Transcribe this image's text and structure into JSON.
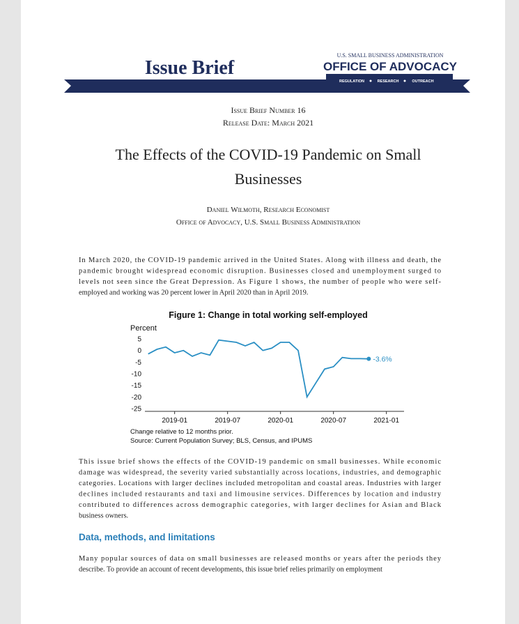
{
  "header": {
    "title": "Issue Brief",
    "agency": "U.S. SMALL BUSINESS ADMINISTRATION",
    "office_prefix": "OFFICE OF",
    "office_name": "ADVOCACY",
    "tagline": [
      "REGULATION",
      "RESEARCH",
      "OUTREACH"
    ]
  },
  "meta": {
    "number": "Issue Brief Number 16",
    "release": "Release Date: March 2021"
  },
  "title": [
    "The Effects of the COVID-19 Pandemic on Small",
    "Businesses"
  ],
  "authors": [
    "Daniel Wilmoth, Research Economist",
    "Office of Advocacy, U.S. Small Business Administration"
  ],
  "intro": [
    "In March 2020, the COVID-19 pandemic arrived in the United States. Along with illness and death, the",
    "pandemic brought widespread economic disruption. Businesses closed and unemployment surged to",
    "levels not seen since the Great Depression. As Figure 1 shows, the number of people who were self-",
    "employed and working was 20 percent lower in April 2020 than in April 2019."
  ],
  "chart_data": {
    "type": "line",
    "title": "Figure 1: Change in total working self-employed",
    "ylabel": "Percent",
    "x": [
      "2018-10",
      "2018-11",
      "2018-12",
      "2019-01",
      "2019-02",
      "2019-03",
      "2019-04",
      "2019-05",
      "2019-06",
      "2019-07",
      "2019-08",
      "2019-09",
      "2019-10",
      "2019-11",
      "2019-12",
      "2020-01",
      "2020-02",
      "2020-03",
      "2020-04",
      "2020-05",
      "2020-06",
      "2020-07",
      "2020-08",
      "2020-09",
      "2020-10",
      "2020-11"
    ],
    "series": [
      {
        "color": "#2a8fc4",
        "values": [
          -1.5,
          0.5,
          1.5,
          -1,
          0,
          -2.5,
          -1,
          -2,
          4.5,
          4,
          3.5,
          2,
          3.5,
          0,
          1,
          3.5,
          3.5,
          0,
          -20,
          -14,
          -8,
          -7,
          -3,
          -3.5,
          -3.5,
          -3.6
        ],
        "value_labels": [
          null,
          null,
          null,
          null,
          null,
          null,
          null,
          null,
          null,
          null,
          null,
          null,
          null,
          null,
          null,
          null,
          null,
          null,
          null,
          null,
          null,
          null,
          null,
          null,
          null,
          "-3.6%"
        ]
      }
    ],
    "xlim": [
      "2018-09",
      "2021-03"
    ],
    "xticks": [
      "2019-01",
      "2019-07",
      "2020-01",
      "2020-07",
      "2021-01"
    ],
    "ylim": [
      -26,
      6
    ],
    "yticks": [
      5,
      0,
      -5,
      -10,
      -15,
      -20,
      -25
    ],
    "notes": [
      "Change relative to 12 months prior.",
      "Source: Current Population Survey; BLS, Census, and IPUMS"
    ]
  },
  "body": [
    "This issue brief shows the effects of the COVID-19 pandemic on small businesses. While economic",
    "damage was widespread, the severity varied substantially across locations, industries, and demographic",
    "categories. Locations with larger declines included metropolitan and coastal areas. Industries with larger",
    "declines included restaurants and taxi and limousine services. Differences by location and industry",
    "contributed to differences across demographic categories, with larger declines for Asian and Black",
    "business owners."
  ],
  "section": {
    "heading": "Data, methods, and limitations",
    "text": [
      "Many popular sources of data on small businesses are released months or years after the periods they",
      "describe. To provide an account of recent developments, this issue brief relies primarily on employment"
    ]
  }
}
